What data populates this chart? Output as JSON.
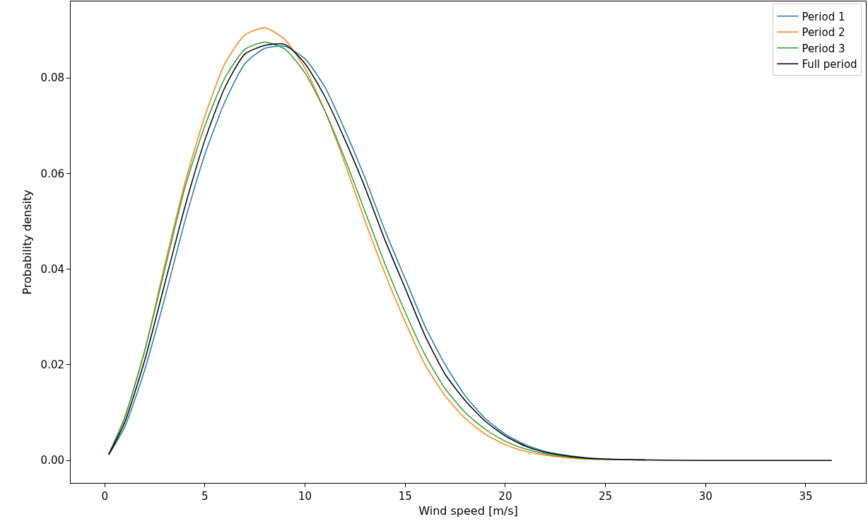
{
  "chart_data": {
    "type": "line",
    "xlabel": "Wind speed [m/s]",
    "ylabel": "Probability density",
    "x": [
      0.2,
      1,
      2,
      3,
      4,
      5,
      6,
      7,
      8,
      9,
      10,
      11,
      12,
      13,
      14,
      15,
      16,
      17,
      18,
      19,
      20,
      21,
      22,
      23,
      24,
      25,
      27,
      30,
      33,
      36.3
    ],
    "series": [
      {
        "name": "Period 1",
        "color": "#1f77b4",
        "values": [
          0.0012,
          0.007,
          0.019,
          0.034,
          0.05,
          0.064,
          0.075,
          0.083,
          0.0862,
          0.0866,
          0.084,
          0.078,
          0.069,
          0.059,
          0.048,
          0.038,
          0.028,
          0.02,
          0.0135,
          0.0088,
          0.0055,
          0.0033,
          0.0019,
          0.0011,
          0.0006,
          0.0003,
          0.0001,
          null,
          null,
          null
        ]
      },
      {
        "name": "Period 2",
        "color": "#ff7f0e",
        "values": [
          0.0013,
          0.009,
          0.023,
          0.041,
          0.058,
          0.072,
          0.083,
          0.089,
          0.0905,
          0.088,
          0.082,
          0.073,
          0.062,
          0.05,
          0.039,
          0.029,
          0.02,
          0.0135,
          0.0088,
          0.0055,
          0.0033,
          0.0019,
          0.0011,
          0.0006,
          0.0003,
          0.0002,
          0.0001,
          null,
          null,
          null
        ]
      },
      {
        "name": "Period 3",
        "color": "#2ca02c",
        "values": [
          0.0013,
          0.009,
          0.023,
          0.04,
          0.057,
          0.07,
          0.08,
          0.086,
          0.0875,
          0.086,
          0.081,
          0.073,
          0.063,
          0.052,
          0.041,
          0.031,
          0.022,
          0.015,
          0.01,
          0.0065,
          0.004,
          0.0024,
          0.0014,
          0.0008,
          0.0004,
          0.0002,
          0.0001,
          null,
          null,
          null
        ]
      },
      {
        "name": "Full period",
        "color": "#000000",
        "values": [
          0.0012,
          0.008,
          0.021,
          0.037,
          0.053,
          0.067,
          0.078,
          0.085,
          0.0868,
          0.087,
          0.083,
          0.076,
          0.067,
          0.057,
          0.046,
          0.036,
          0.026,
          0.018,
          0.0125,
          0.0082,
          0.0051,
          0.003,
          0.0017,
          0.001,
          0.0005,
          0.0003,
          0.0001,
          0,
          0,
          0
        ]
      }
    ],
    "xlim": [
      -1.7,
      38
    ],
    "ylim": [
      -0.0047,
      0.096
    ],
    "xticks": [
      0,
      5,
      10,
      15,
      20,
      25,
      30,
      35
    ],
    "yticks": [
      {
        "value": 0,
        "label": "0.00"
      },
      {
        "value": 0.02,
        "label": "0.02"
      },
      {
        "value": 0.04,
        "label": "0.04"
      },
      {
        "value": 0.06,
        "label": "0.06"
      },
      {
        "value": 0.08,
        "label": "0.08"
      }
    ],
    "legend": "top right",
    "marker": "none",
    "line_style": "solid"
  }
}
